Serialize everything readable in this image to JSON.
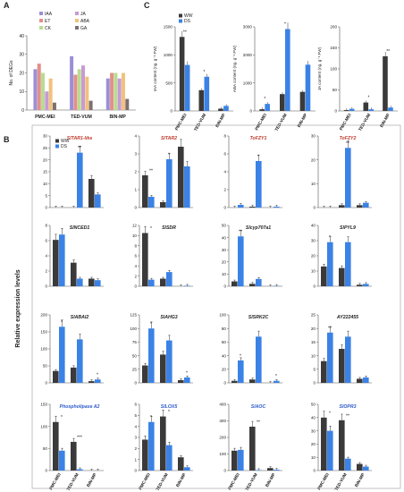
{
  "chart_data": [
    {
      "panel": "A",
      "type": "bar",
      "ylabel": "No. of DEGs",
      "ylim": [
        0,
        40
      ],
      "yticks": [
        0,
        10,
        20,
        30,
        40
      ],
      "categories": [
        "PMC-MEI",
        "TED-VUM",
        "BIN-MP"
      ],
      "legend": [
        {
          "name": "IAA",
          "color": "#9b8fd6"
        },
        {
          "name": "ET",
          "color": "#e38f8a"
        },
        {
          "name": "CK",
          "color": "#b9dc90"
        },
        {
          "name": "JA",
          "color": "#c79ad6"
        },
        {
          "name": "ABA",
          "color": "#f1c27d"
        },
        {
          "name": "GA",
          "color": "#7e6f6f"
        }
      ],
      "series": [
        {
          "name": "IAA",
          "values": [
            22,
            29,
            17
          ]
        },
        {
          "name": "ET",
          "values": [
            25,
            19,
            20
          ]
        },
        {
          "name": "CK",
          "values": [
            20,
            22,
            20
          ]
        },
        {
          "name": "JA",
          "values": [
            10,
            24,
            17
          ]
        },
        {
          "name": "ABA",
          "values": [
            17,
            18,
            20
          ]
        },
        {
          "name": "GA",
          "values": [
            4,
            5,
            6
          ]
        }
      ]
    },
    {
      "panel": "C",
      "type": "bar",
      "legend": [
        {
          "name": "WW",
          "color": "#3a3a3a"
        },
        {
          "name": "DS",
          "color": "#3a82e6"
        }
      ],
      "categories": [
        "PMC-MEI",
        "TED-VUM",
        "BIN-MP"
      ],
      "plots": [
        {
          "ylabel": "IAA content (ng. g⁻¹ FW)",
          "ylim": [
            0,
            1500
          ],
          "yticks": [
            0,
            500,
            1000,
            1500
          ],
          "series": [
            {
              "name": "WW",
              "values": [
                1320,
                370,
                40
              ]
            },
            {
              "name": "DS",
              "values": [
                820,
                610,
                90
              ]
            }
          ],
          "stars": [
            "**",
            "*",
            ""
          ]
        },
        {
          "ylabel": "ABA content (ng. g⁻¹ FW)",
          "ylim": [
            0,
            3000
          ],
          "yticks": [
            0,
            1000,
            2000,
            3000
          ],
          "series": [
            {
              "name": "WW",
              "values": [
                60,
                600,
                680
              ]
            },
            {
              "name": "DS",
              "values": [
                250,
                2920,
                1650
              ]
            }
          ],
          "stars": [
            "*",
            "*",
            ""
          ]
        },
        {
          "ylabel": "JA content (ng. g⁻¹ FW)",
          "ylim": [
            0,
            200
          ],
          "yticks": [
            0,
            50,
            100,
            150,
            200
          ],
          "series": [
            {
              "name": "WW",
              "values": [
                2,
                20,
                130
              ]
            },
            {
              "name": "DS",
              "values": [
                5,
                4,
                8
              ]
            }
          ],
          "stars": [
            "",
            "*",
            "**"
          ]
        }
      ]
    },
    {
      "panel": "B",
      "type": "bar",
      "ylabel": "Relative expression levels",
      "legend": [
        {
          "name": "WW",
          "color": "#3a3a3a"
        },
        {
          "name": "DS",
          "color": "#3a82e6"
        }
      ],
      "categories": [
        "PMC-MEI",
        "TED-VUM",
        "BIN-MP"
      ],
      "genes": [
        {
          "name": "SlTAR1-like",
          "color": "#c0392b",
          "ylim": [
            0,
            30
          ],
          "yticks": [
            0,
            5,
            10,
            15,
            20,
            25,
            30
          ],
          "ww": [
            0,
            0,
            12
          ],
          "ds": [
            0,
            23,
            5.5
          ],
          "stars": [
            "",
            "**",
            ""
          ]
        },
        {
          "name": "SlTAR2",
          "color": "#c0392b",
          "ylim": [
            0,
            4
          ],
          "yticks": [
            0,
            1,
            2,
            3,
            4
          ],
          "ww": [
            1.8,
            0.3,
            3.4
          ],
          "ds": [
            0.6,
            2.7,
            2.3
          ],
          "stars": [
            "**",
            "*",
            ""
          ]
        },
        {
          "name": "ToFZY1",
          "color": "#c0392b",
          "ylim": [
            0,
            8
          ],
          "yticks": [
            0,
            2,
            4,
            6,
            8
          ],
          "ww": [
            0,
            0.1,
            0
          ],
          "ds": [
            0.3,
            5.2,
            0.1
          ],
          "stars": [
            "",
            "*",
            ""
          ]
        },
        {
          "name": "ToFZY2",
          "color": "#c0392b",
          "ylim": [
            0,
            30
          ],
          "yticks": [
            0,
            10,
            20,
            30
          ],
          "ww": [
            0,
            1,
            1
          ],
          "ds": [
            0,
            25,
            2
          ],
          "stars": [
            "",
            "**",
            ""
          ]
        },
        {
          "name": "SlNCED1",
          "color": "#222222",
          "ylim": [
            0,
            8
          ],
          "yticks": [
            0,
            2,
            4,
            6,
            8
          ],
          "ww": [
            6.1,
            3.1,
            1
          ],
          "ds": [
            6.8,
            1,
            0.8
          ],
          "stars": [
            "",
            "",
            ""
          ]
        },
        {
          "name": "SlSDR",
          "color": "#222222",
          "ylim": [
            0,
            12
          ],
          "yticks": [
            0,
            2,
            4,
            6,
            8,
            10,
            12
          ],
          "ww": [
            10.5,
            1.5,
            0
          ],
          "ds": [
            1.3,
            2.8,
            0.1
          ],
          "stars": [
            "*",
            "",
            ""
          ]
        },
        {
          "name": "Slcyp707a1",
          "color": "#222222",
          "ylim": [
            0,
            50
          ],
          "yticks": [
            0,
            10,
            20,
            30,
            40,
            50
          ],
          "ww": [
            4,
            2,
            0
          ],
          "ds": [
            41,
            6,
            0.3
          ],
          "stars": [
            "**",
            "",
            ""
          ]
        },
        {
          "name": "SlPYL9",
          "color": "#222222",
          "ylim": [
            0,
            40
          ],
          "yticks": [
            0,
            10,
            20,
            30,
            40
          ],
          "ww": [
            13,
            12,
            1
          ],
          "ds": [
            29,
            29,
            1.5
          ],
          "stars": [
            "*",
            "",
            ""
          ]
        },
        {
          "name": "SlABAI2",
          "color": "#222222",
          "ylim": [
            0,
            200
          ],
          "yticks": [
            0,
            50,
            100,
            150,
            200
          ],
          "ww": [
            35,
            45,
            5
          ],
          "ds": [
            165,
            128,
            10
          ],
          "stars": [
            "*",
            "",
            "*"
          ]
        },
        {
          "name": "SlAHG3",
          "color": "#222222",
          "ylim": [
            0,
            125
          ],
          "yticks": [
            0,
            25,
            50,
            75,
            100,
            125
          ],
          "ww": [
            32,
            52,
            5
          ],
          "ds": [
            100,
            78,
            10
          ],
          "stars": [
            "*",
            "",
            "*"
          ]
        },
        {
          "name": "SlSRK2C",
          "color": "#222222",
          "ylim": [
            0,
            100
          ],
          "yticks": [
            0,
            20,
            40,
            60,
            80,
            100
          ],
          "ww": [
            3,
            5,
            0
          ],
          "ds": [
            33,
            68,
            3
          ],
          "stars": [
            "*",
            "",
            "*"
          ]
        },
        {
          "name": "AY222455",
          "color": "#222222",
          "ylim": [
            0,
            25
          ],
          "yticks": [
            0,
            5,
            10,
            15,
            20,
            25
          ],
          "ww": [
            8,
            12.5,
            1.5
          ],
          "ds": [
            18.5,
            17,
            2
          ],
          "stars": [
            "**",
            "",
            ""
          ]
        },
        {
          "name": "Phospholipase A2",
          "color": "#2c59c9",
          "ylim": [
            0,
            150
          ],
          "yticks": [
            0,
            50,
            100,
            150
          ],
          "ww": [
            110,
            65,
            0
          ],
          "ds": [
            45,
            3,
            0
          ],
          "stars": [
            "*",
            "***",
            ""
          ]
        },
        {
          "name": "SlLOX5",
          "color": "#2c59c9",
          "ylim": [
            0,
            6
          ],
          "yticks": [
            0,
            1,
            2,
            3,
            4,
            5,
            6
          ],
          "ww": [
            2.8,
            4.9,
            1.2
          ],
          "ds": [
            4.4,
            2.3,
            0.3
          ],
          "stars": [
            "*",
            "*",
            ""
          ]
        },
        {
          "name": "SlAOC",
          "color": "#2c59c9",
          "ylim": [
            0,
            400
          ],
          "yticks": [
            0,
            100,
            200,
            300,
            400
          ],
          "ww": [
            120,
            265,
            15
          ],
          "ds": [
            125,
            3,
            5
          ],
          "stars": [
            "",
            "**",
            ""
          ]
        },
        {
          "name": "SlOPR3",
          "color": "#2c59c9",
          "ylim": [
            0,
            50
          ],
          "yticks": [
            0,
            10,
            20,
            30,
            40,
            50
          ],
          "ww": [
            40,
            38,
            5
          ],
          "ds": [
            30,
            9,
            3
          ],
          "stars": [
            "*",
            "**",
            ""
          ]
        }
      ]
    }
  ]
}
